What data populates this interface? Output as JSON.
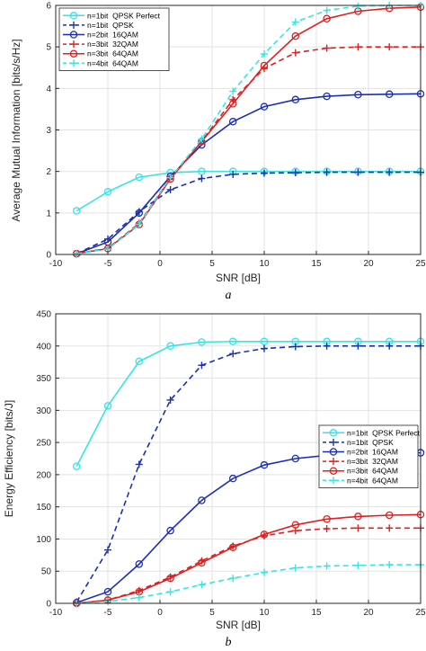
{
  "chart_data": [
    {
      "type": "line",
      "panel_label": "a",
      "xlabel": "SNR [dB]",
      "ylabel": "Average Mutual Information [bits/s/Hz]",
      "xlim": [
        -10,
        25
      ],
      "ylim": [
        0,
        6
      ],
      "xticks": [
        -10,
        -5,
        0,
        5,
        10,
        15,
        20,
        25
      ],
      "yticks": [
        0,
        1,
        2,
        3,
        4,
        5,
        6
      ],
      "grid": true,
      "legend_position": "top-left",
      "series": [
        {
          "name": "n=1bit  QPSK Perfect",
          "color": "#33e6e6",
          "dash": "solid",
          "marker": "circle",
          "x": [
            -8,
            -5,
            -2,
            1,
            4,
            7,
            10,
            13,
            16,
            19,
            22,
            25
          ],
          "y": [
            1.05,
            1.51,
            1.86,
            1.97,
            2.0,
            2.0,
            2.0,
            2.0,
            2.0,
            2.0,
            2.0,
            2.0
          ]
        },
        {
          "name": "n=1bit  QPSK",
          "color": "#1b2fb5",
          "dash": "dashed",
          "marker": "plus",
          "x": [
            -8,
            -5,
            -2,
            1,
            4,
            7,
            10,
            13,
            16,
            19,
            22,
            25
          ],
          "y": [
            0.02,
            0.37,
            1.03,
            1.56,
            1.83,
            1.93,
            1.96,
            1.97,
            1.98,
            1.98,
            1.98,
            1.98
          ]
        },
        {
          "name": "n=2bit  16QAM",
          "color": "#1b2fb5",
          "dash": "solid",
          "marker": "circle",
          "x": [
            -8,
            -5,
            -2,
            1,
            4,
            7,
            10,
            13,
            16,
            19,
            22,
            25
          ],
          "y": [
            0.02,
            0.3,
            1.0,
            1.88,
            2.64,
            3.2,
            3.56,
            3.73,
            3.81,
            3.85,
            3.86,
            3.87
          ]
        },
        {
          "name": "n=3bit  32QAM",
          "color": "#e02020",
          "dash": "dashed",
          "marker": "plus",
          "x": [
            -8,
            -5,
            -2,
            1,
            4,
            7,
            10,
            13,
            16,
            19,
            22,
            25
          ],
          "y": [
            0.02,
            0.15,
            0.75,
            1.85,
            2.73,
            3.73,
            4.48,
            4.86,
            4.97,
            5.0,
            5.0,
            5.0
          ]
        },
        {
          "name": "n=3bit  64QAM",
          "color": "#e02020",
          "dash": "solid",
          "marker": "circle",
          "x": [
            -8,
            -5,
            -2,
            1,
            4,
            7,
            10,
            13,
            16,
            19,
            22,
            25
          ],
          "y": [
            0.02,
            0.14,
            0.72,
            1.82,
            2.72,
            3.63,
            4.55,
            5.26,
            5.68,
            5.86,
            5.93,
            5.96
          ]
        },
        {
          "name": "n=4bit  64QAM",
          "color": "#33e6e6",
          "dash": "dashed",
          "marker": "plus",
          "x": [
            -8,
            -5,
            -2,
            1,
            4,
            7,
            10,
            13,
            16,
            19,
            22,
            25
          ],
          "y": [
            0.02,
            0.13,
            0.73,
            1.85,
            2.78,
            3.93,
            4.83,
            5.6,
            5.88,
            5.98,
            6.0,
            6.0
          ]
        }
      ]
    },
    {
      "type": "line",
      "panel_label": "b",
      "xlabel": "SNR [dB]",
      "ylabel": "Energy Efficiency [bits/J]",
      "xlim": [
        -10,
        25
      ],
      "ylim": [
        0,
        450
      ],
      "xticks": [
        -10,
        -5,
        0,
        5,
        10,
        15,
        20,
        25
      ],
      "yticks": [
        0,
        50,
        100,
        150,
        200,
        250,
        300,
        350,
        400,
        450
      ],
      "grid": true,
      "legend_position": "right",
      "series": [
        {
          "name": "n=1bit  QPSK Perfect",
          "color": "#33e6e6",
          "dash": "solid",
          "marker": "circle",
          "x": [
            -8,
            -5,
            -2,
            1,
            4,
            7,
            10,
            13,
            16,
            19,
            22,
            25
          ],
          "y": [
            213,
            307,
            376,
            400,
            406,
            407,
            407,
            407,
            407,
            407,
            407,
            407
          ]
        },
        {
          "name": "n=1bit  QPSK",
          "color": "#1b2fb5",
          "dash": "dashed",
          "marker": "plus",
          "x": [
            -8,
            -5,
            -2,
            1,
            4,
            7,
            10,
            13,
            16,
            19,
            22,
            25
          ],
          "y": [
            2,
            83,
            216,
            316,
            370,
            388,
            396,
            399,
            400,
            400,
            400,
            400
          ]
        },
        {
          "name": "n=2bit  16QAM",
          "color": "#1b2fb5",
          "dash": "solid",
          "marker": "circle",
          "x": [
            -8,
            -5,
            -2,
            1,
            4,
            7,
            10,
            13,
            16,
            19,
            22,
            25
          ],
          "y": [
            1,
            18,
            61,
            113,
            160,
            194,
            215,
            225,
            230,
            232,
            233,
            234
          ]
        },
        {
          "name": "n=3bit  32QAM",
          "color": "#e02020",
          "dash": "dashed",
          "marker": "plus",
          "x": [
            -8,
            -5,
            -2,
            1,
            4,
            7,
            10,
            13,
            16,
            19,
            22,
            25
          ],
          "y": [
            0,
            5,
            20,
            41,
            66,
            89,
            105,
            113,
            116,
            117,
            117,
            117
          ]
        },
        {
          "name": "n=3bit  64QAM",
          "color": "#e02020",
          "dash": "solid",
          "marker": "circle",
          "x": [
            -8,
            -5,
            -2,
            1,
            4,
            7,
            10,
            13,
            16,
            19,
            22,
            25
          ],
          "y": [
            0,
            5,
            18,
            39,
            63,
            87,
            107,
            122,
            131,
            135,
            137,
            138
          ]
        },
        {
          "name": "n=4bit  64QAM",
          "color": "#33e6e6",
          "dash": "dashed",
          "marker": "plus",
          "x": [
            -8,
            -5,
            -2,
            1,
            4,
            7,
            10,
            13,
            16,
            19,
            22,
            25
          ],
          "y": [
            0,
            3,
            9,
            18,
            29,
            39,
            48,
            55,
            58,
            59,
            60,
            60
          ]
        }
      ]
    }
  ]
}
